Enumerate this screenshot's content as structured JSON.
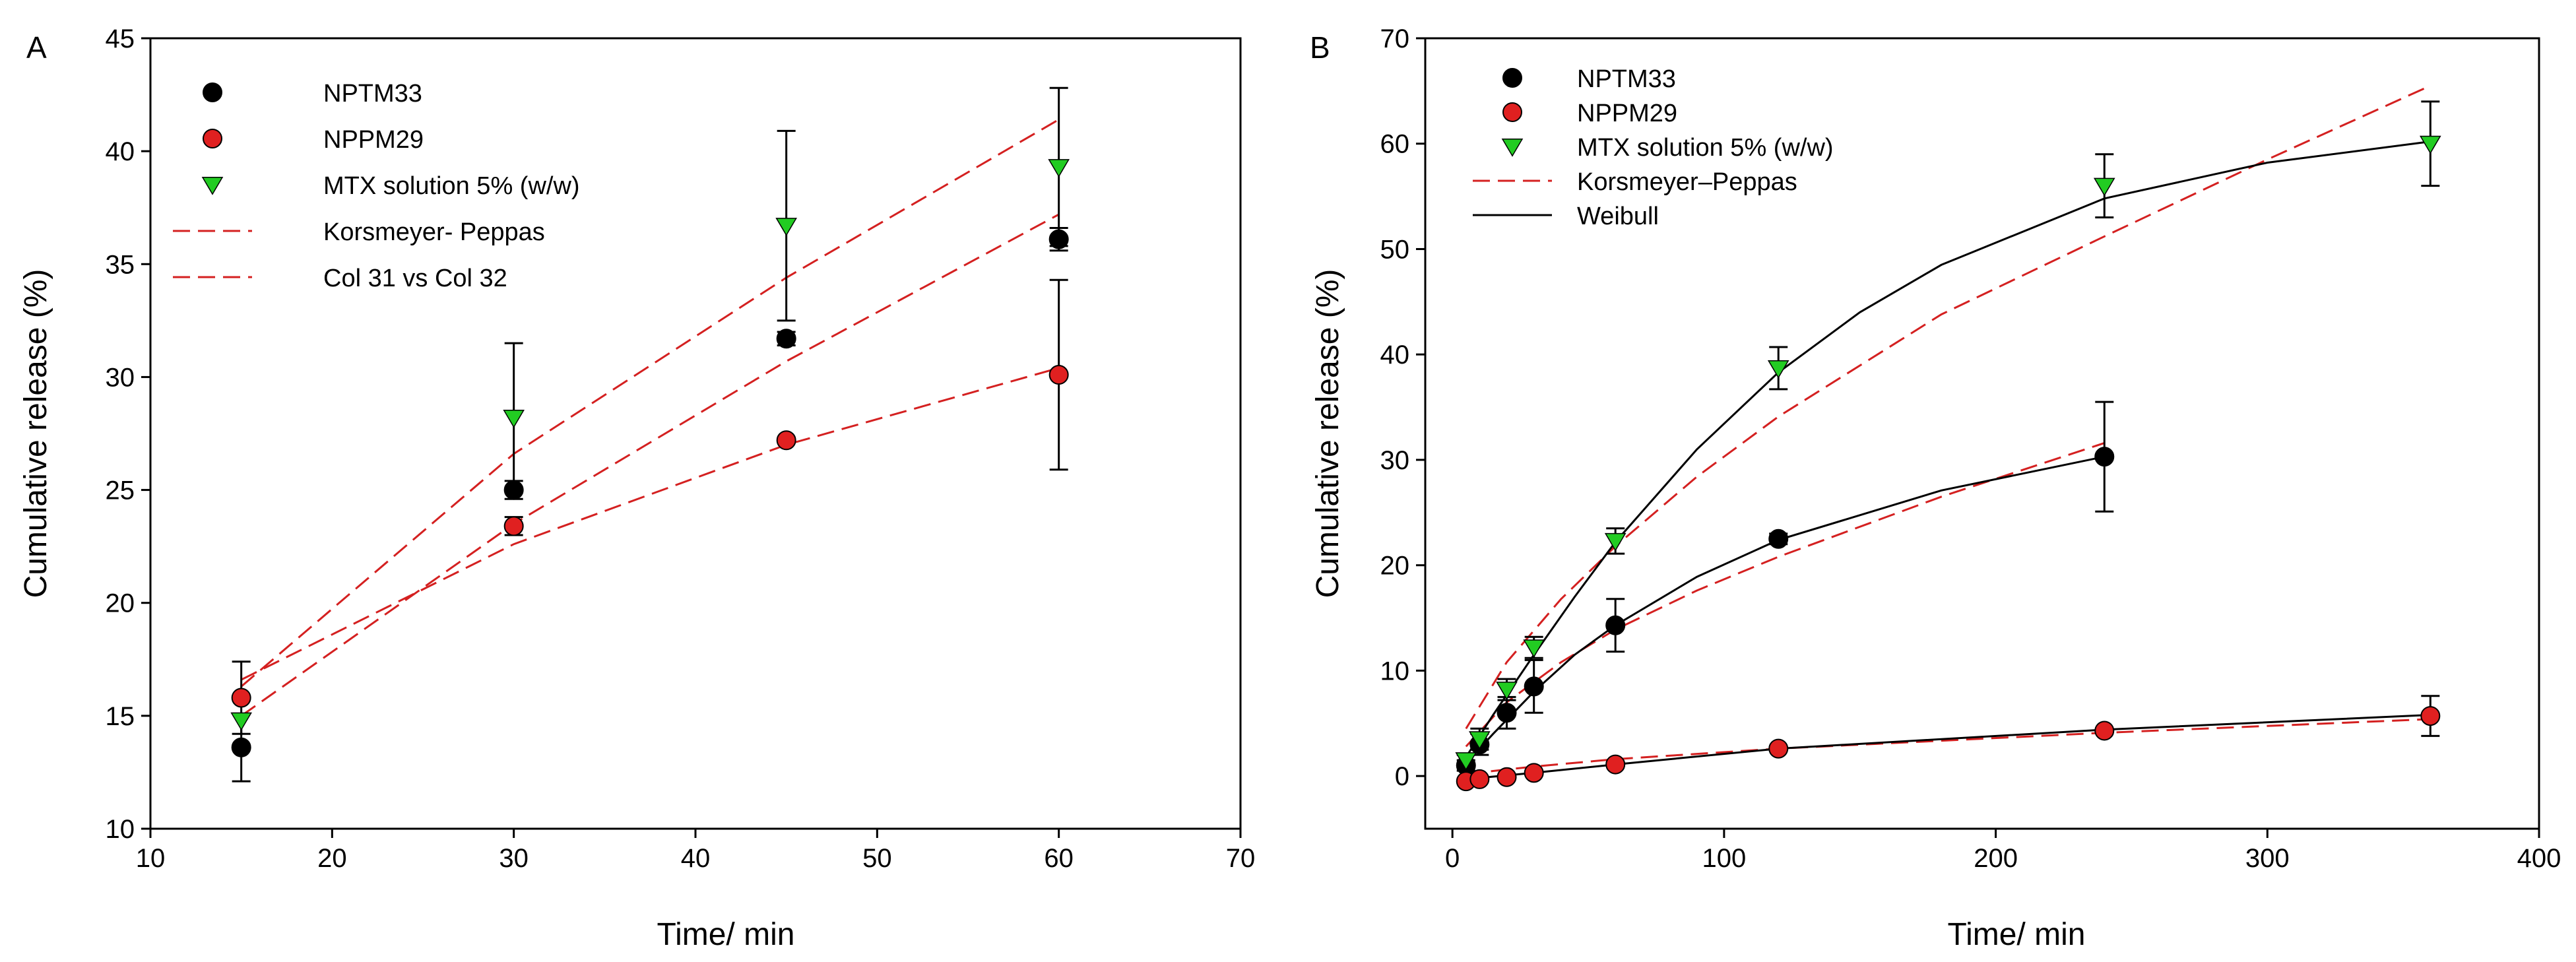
{
  "colors": {
    "black_series": "#000000",
    "red_series": "#e02020",
    "green_series": "#22cc22",
    "fit_red": "#d42020",
    "fit_black": "#000000"
  },
  "chart_data": [
    {
      "panel_label": "A",
      "type": "scatter",
      "xlabel": "Time/ min",
      "ylabel": "Cumulative release (%)",
      "xlim": [
        10,
        70
      ],
      "ylim": [
        10,
        45
      ],
      "xticks": [
        10,
        20,
        30,
        40,
        50,
        60,
        70
      ],
      "yticks": [
        10,
        15,
        20,
        25,
        30,
        35,
        40,
        45
      ],
      "legend_position": "top-left",
      "legend": [
        {
          "label": "NPTM33",
          "marker": "circle",
          "color": "#000000"
        },
        {
          "label": "NPPM29",
          "marker": "circle",
          "color": "#e02020"
        },
        {
          "label": "MTX solution 5% (w/w)",
          "marker": "triangle-down",
          "color": "#22cc22"
        },
        {
          "label": "Korsmeyer- Peppas",
          "marker": "dashed-line",
          "color": "#d42020"
        },
        {
          "label": "Col 31 vs Col 32",
          "marker": "dashed-line",
          "color": "#d42020"
        }
      ],
      "series": [
        {
          "name": "NPTM33",
          "marker": "circle",
          "color": "#000000",
          "x": [
            15,
            30,
            45,
            60
          ],
          "y": [
            13.6,
            25.0,
            31.7,
            36.1
          ],
          "err": [
            1.5,
            0.4,
            0.3,
            0.5
          ]
        },
        {
          "name": "NPPM29",
          "marker": "circle",
          "color": "#e02020",
          "x": [
            15,
            30,
            45,
            60
          ],
          "y": [
            15.8,
            23.4,
            27.2,
            30.1
          ],
          "err": [
            1.6,
            0.4,
            0.0,
            4.2
          ]
        },
        {
          "name": "MTX solution 5% (w/w)",
          "marker": "triangle-down",
          "color": "#22cc22",
          "x": [
            15,
            30,
            45,
            60
          ],
          "y": [
            14.8,
            28.2,
            36.7,
            39.3
          ],
          "err": [
            0.0,
            3.3,
            4.2,
            3.5
          ]
        }
      ],
      "fits": [
        {
          "name": "Korsmeyer- Peppas (MTX solution)",
          "color": "#d42020",
          "style": "dashed",
          "x": [
            15,
            30,
            45,
            60
          ],
          "y": [
            16.3,
            26.6,
            34.4,
            41.4
          ]
        },
        {
          "name": "Korsmeyer- Peppas (NPTM33)",
          "color": "#d42020",
          "style": "dashed",
          "x": [
            15,
            30,
            45,
            60
          ],
          "y": [
            15.0,
            23.5,
            30.7,
            37.2
          ]
        },
        {
          "name": "Col 31 vs Col 32",
          "color": "#d42020",
          "style": "dashed",
          "x": [
            15,
            30,
            45,
            60
          ],
          "y": [
            16.6,
            22.6,
            27.0,
            30.4
          ]
        }
      ]
    },
    {
      "panel_label": "B",
      "type": "scatter",
      "xlabel": "Time/ min",
      "ylabel": "Cumulative release (%)",
      "xlim": [
        -10,
        400
      ],
      "ylim": [
        -5,
        70
      ],
      "xticks": [
        0,
        100,
        200,
        300,
        400
      ],
      "yticks": [
        0,
        10,
        20,
        30,
        40,
        50,
        60,
        70
      ],
      "legend_position": "top-left",
      "legend": [
        {
          "label": "NPTM33",
          "marker": "circle",
          "color": "#000000"
        },
        {
          "label": "NPPM29",
          "marker": "circle",
          "color": "#e02020"
        },
        {
          "label": "MTX solution 5% (w/w)",
          "marker": "triangle-down",
          "color": "#22cc22"
        },
        {
          "label": "Korsmeyer–Peppas",
          "marker": "dashed-line",
          "color": "#d42020"
        },
        {
          "label": "Weibull",
          "marker": "solid-line",
          "color": "#000000"
        }
      ],
      "series": [
        {
          "name": "NPTM33",
          "marker": "circle",
          "color": "#000000",
          "x": [
            5,
            10,
            20,
            30,
            60,
            120,
            240
          ],
          "y": [
            1.0,
            3.0,
            6.0,
            8.5,
            14.3,
            22.5,
            30.3
          ],
          "err": [
            0.5,
            1.0,
            1.5,
            2.5,
            2.5,
            0.5,
            5.2
          ]
        },
        {
          "name": "NPPM29",
          "marker": "circle",
          "color": "#e02020",
          "x": [
            5,
            10,
            20,
            30,
            60,
            120,
            240,
            360
          ],
          "y": [
            -0.5,
            -0.3,
            -0.1,
            0.3,
            1.1,
            2.6,
            4.3,
            5.7
          ],
          "err": [
            0.0,
            0.0,
            0.0,
            0.0,
            0.0,
            0.0,
            0.0,
            1.9
          ]
        },
        {
          "name": "MTX solution 5% (w/w)",
          "marker": "triangle-down",
          "color": "#22cc22",
          "x": [
            5,
            10,
            20,
            30,
            60,
            120,
            240,
            360
          ],
          "y": [
            1.5,
            3.5,
            8.2,
            12.2,
            22.3,
            38.7,
            56.0,
            60.0
          ],
          "err": [
            0.5,
            1.0,
            1.0,
            1.0,
            1.2,
            2.0,
            3.0,
            4.0
          ]
        }
      ],
      "fits": [
        {
          "name": "Korsmeyer–Peppas (MTX solution)",
          "color": "#d42020",
          "style": "dashed",
          "x": [
            5,
            20,
            40,
            60,
            90,
            120,
            180,
            240,
            300,
            360
          ],
          "y": [
            4.5,
            10.8,
            16.8,
            21.8,
            28.4,
            34.1,
            43.8,
            51.2,
            58.5,
            65.5
          ]
        },
        {
          "name": "Korsmeyer–Peppas (NPTM33)",
          "color": "#d42020",
          "style": "dashed",
          "x": [
            5,
            20,
            40,
            60,
            90,
            120,
            180,
            240
          ],
          "y": [
            2.8,
            7.0,
            10.8,
            13.9,
            17.6,
            20.8,
            26.5,
            31.6
          ]
        },
        {
          "name": "Korsmeyer–Peppas (NPPM29)",
          "color": "#d42020",
          "style": "dashed",
          "x": [
            5,
            30,
            60,
            120,
            240,
            360
          ],
          "y": [
            0.2,
            0.9,
            1.6,
            2.6,
            4.1,
            5.4
          ]
        },
        {
          "name": "Weibull (MTX solution)",
          "color": "#000000",
          "style": "solid",
          "x": [
            5,
            15,
            30,
            45,
            60,
            90,
            120,
            150,
            180,
            240,
            300,
            360
          ],
          "y": [
            1.8,
            5.8,
            11.5,
            17.0,
            22.2,
            31.0,
            38.3,
            44.0,
            48.5,
            54.8,
            58.2,
            60.2
          ]
        },
        {
          "name": "Weibull (NPTM33)",
          "color": "#000000",
          "style": "solid",
          "x": [
            5,
            15,
            30,
            45,
            60,
            90,
            120,
            180,
            240
          ],
          "y": [
            1.2,
            4.0,
            8.0,
            11.5,
            14.3,
            18.9,
            22.4,
            27.1,
            30.3
          ]
        },
        {
          "name": "Weibull (NPPM29)",
          "color": "#000000",
          "style": "solid",
          "x": [
            5,
            30,
            60,
            120,
            240,
            360
          ],
          "y": [
            -0.3,
            0.3,
            1.1,
            2.6,
            4.4,
            5.8
          ]
        }
      ]
    }
  ]
}
